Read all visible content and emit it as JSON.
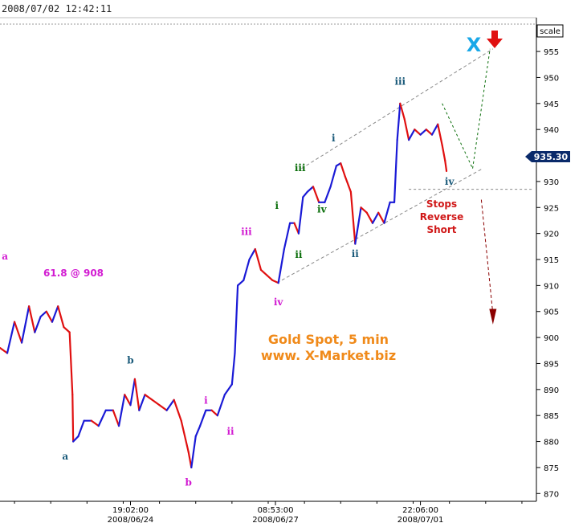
{
  "header": {
    "timestamp": "2008/07/02 12:42:11",
    "scale_label": "scale"
  },
  "current_price_label": "935.30",
  "colors": {
    "up": "#1a1ad6",
    "down": "#e01010",
    "magenta": "#d21cd2",
    "teal": "#1a5a7a",
    "green": "#0a6e0a",
    "orange": "#f08a1a",
    "red": "#e01010",
    "cyan": "#1aa8e8",
    "darkred": "#8b0000",
    "channel": "#888888"
  },
  "annotations": {
    "fib": "61.8 @ 908",
    "watermark_line1": "Gold Spot, 5 min",
    "watermark_line2": "www. X-Market.biz",
    "big_x": "X",
    "stops": [
      "Stops",
      "Reverse",
      "Short"
    ]
  },
  "wave_labels": [
    {
      "text": "a",
      "x": 0.34,
      "y": 915,
      "color": "magenta"
    },
    {
      "text": "b",
      "x": 9.0,
      "y": 895,
      "color": "teal"
    },
    {
      "text": "a",
      "x": 4.5,
      "y": 876.5,
      "color": "teal"
    },
    {
      "text": "b",
      "x": 13.0,
      "y": 871.5,
      "color": "magenta"
    },
    {
      "text": "i",
      "x": 14.2,
      "y": 887.3,
      "color": "magenta"
    },
    {
      "text": "ii",
      "x": 15.9,
      "y": 881.3,
      "color": "magenta"
    },
    {
      "text": "iii",
      "x": 17.0,
      "y": 919.7,
      "color": "magenta"
    },
    {
      "text": "iv",
      "x": 19.2,
      "y": 906.2,
      "color": "magenta"
    },
    {
      "text": "i",
      "x": 19.1,
      "y": 924.7,
      "color": "green"
    },
    {
      "text": "ii",
      "x": 20.6,
      "y": 915.3,
      "color": "green"
    },
    {
      "text": "iii",
      "x": 20.7,
      "y": 932.0,
      "color": "green"
    },
    {
      "text": "iv",
      "x": 22.2,
      "y": 924.0,
      "color": "green"
    },
    {
      "text": "i",
      "x": 23.0,
      "y": 937.7,
      "color": "teal"
    },
    {
      "text": "ii",
      "x": 24.5,
      "y": 915.5,
      "color": "teal"
    },
    {
      "text": "iii",
      "x": 27.6,
      "y": 948.6,
      "color": "teal"
    },
    {
      "text": "iv",
      "x": 31.0,
      "y": 929.4,
      "color": "teal"
    }
  ],
  "chart_data": {
    "type": "line",
    "title": "Gold Spot, 5 min",
    "x_tick_labels": [
      {
        "time": "19:02:00",
        "date": "2008/06/24",
        "x": 9.0
      },
      {
        "time": "08:53:00",
        "date": "2008/06/27",
        "x": 19.0
      },
      {
        "time": "22:06:00",
        "date": "2008/07/01",
        "x": 29.0
      }
    ],
    "xlim": [
      0,
      37
    ],
    "ylim": [
      868.5,
      961.5
    ],
    "y_ticks": [
      870,
      875,
      880,
      885,
      890,
      895,
      900,
      905,
      910,
      915,
      920,
      925,
      930,
      935,
      940,
      945,
      950,
      955
    ],
    "grid": false,
    "current_price": 935.3,
    "series": [
      {
        "values": [
          [
            0.0,
            898
          ],
          [
            0.5,
            897
          ],
          [
            1.0,
            903
          ],
          [
            1.5,
            899
          ],
          [
            2.0,
            906
          ],
          [
            2.4,
            901
          ],
          [
            2.8,
            904
          ],
          [
            3.2,
            905
          ],
          [
            3.6,
            903
          ],
          [
            4.0,
            906
          ],
          [
            4.4,
            902
          ],
          [
            4.8,
            901
          ],
          [
            5.0,
            889
          ],
          [
            5.05,
            880
          ],
          [
            5.4,
            881
          ],
          [
            5.8,
            884
          ],
          [
            6.3,
            884
          ],
          [
            6.8,
            883
          ],
          [
            7.3,
            886
          ],
          [
            7.8,
            886
          ],
          [
            8.2,
            883
          ],
          [
            8.6,
            889
          ],
          [
            9.0,
            887
          ],
          [
            9.3,
            892
          ],
          [
            9.6,
            886
          ],
          [
            10.0,
            889
          ],
          [
            10.5,
            888
          ],
          [
            11.0,
            887
          ],
          [
            11.5,
            886
          ],
          [
            12.0,
            888
          ],
          [
            12.5,
            884
          ],
          [
            13.0,
            878
          ],
          [
            13.2,
            875
          ],
          [
            13.5,
            881
          ],
          [
            13.8,
            883
          ],
          [
            14.2,
            886
          ],
          [
            14.6,
            886
          ],
          [
            15.0,
            885
          ],
          [
            15.5,
            889
          ],
          [
            16.0,
            891
          ],
          [
            16.2,
            897
          ],
          [
            16.4,
            910
          ],
          [
            16.8,
            911
          ],
          [
            17.2,
            915
          ],
          [
            17.6,
            917
          ],
          [
            18.0,
            913
          ],
          [
            18.4,
            912
          ],
          [
            18.8,
            911
          ],
          [
            19.2,
            910.5
          ],
          [
            19.6,
            917
          ],
          [
            20.0,
            922
          ],
          [
            20.3,
            922
          ],
          [
            20.6,
            920
          ],
          [
            20.9,
            927
          ],
          [
            21.2,
            928
          ],
          [
            21.6,
            929
          ],
          [
            22.0,
            926
          ],
          [
            22.4,
            926
          ],
          [
            22.8,
            929
          ],
          [
            23.2,
            933
          ],
          [
            23.5,
            933.5
          ],
          [
            23.8,
            931
          ],
          [
            24.2,
            928
          ],
          [
            24.5,
            918
          ],
          [
            24.9,
            925
          ],
          [
            25.3,
            924
          ],
          [
            25.7,
            922
          ],
          [
            26.1,
            924
          ],
          [
            26.5,
            922
          ],
          [
            26.9,
            926
          ],
          [
            27.2,
            926
          ],
          [
            27.4,
            938
          ],
          [
            27.6,
            945
          ],
          [
            27.9,
            942
          ],
          [
            28.2,
            938
          ],
          [
            28.6,
            940
          ],
          [
            29.0,
            939
          ],
          [
            29.4,
            940
          ],
          [
            29.8,
            939
          ],
          [
            30.2,
            941
          ],
          [
            30.5,
            937
          ],
          [
            30.7,
            934
          ],
          [
            30.8,
            932
          ]
        ]
      }
    ]
  }
}
